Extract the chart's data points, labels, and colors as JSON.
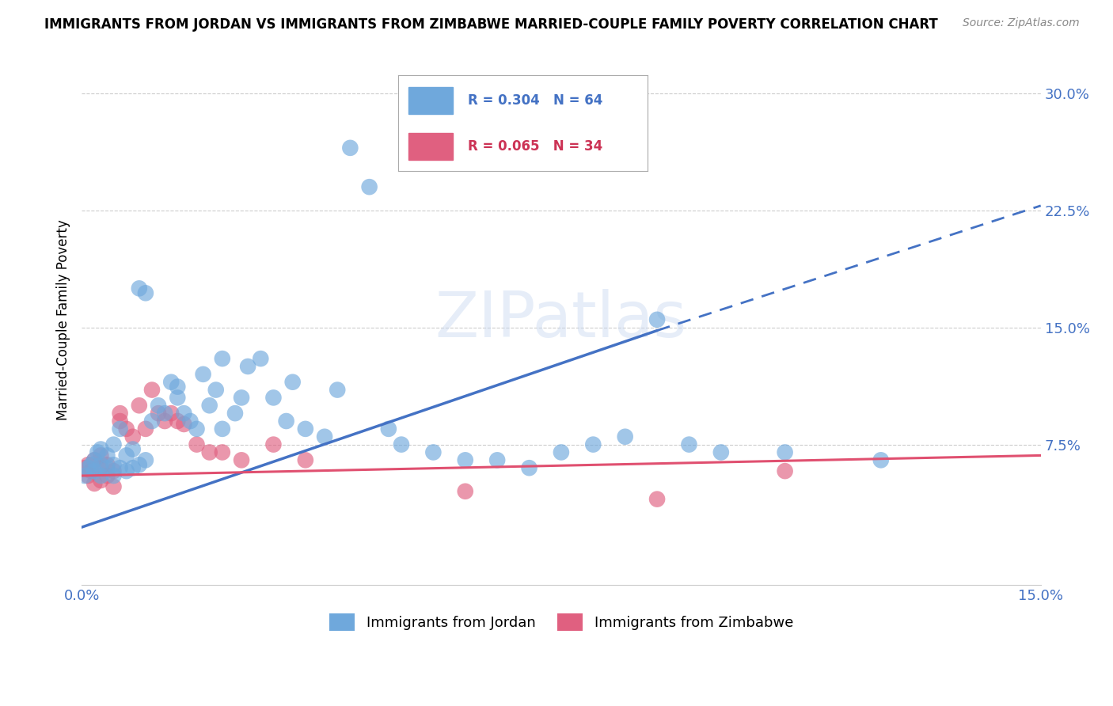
{
  "title": "IMMIGRANTS FROM JORDAN VS IMMIGRANTS FROM ZIMBABWE MARRIED-COUPLE FAMILY POVERTY CORRELATION CHART",
  "source": "Source: ZipAtlas.com",
  "ylabel": "Married-Couple Family Poverty",
  "xlim": [
    0.0,
    0.15
  ],
  "ylim": [
    -0.015,
    0.325
  ],
  "xticks": [
    0.0,
    0.03,
    0.06,
    0.09,
    0.12,
    0.15
  ],
  "xticklabels": [
    "0.0%",
    "",
    "",
    "",
    "",
    "15.0%"
  ],
  "ytick_vals": [
    0.0,
    0.075,
    0.15,
    0.225,
    0.3
  ],
  "yticklabels": [
    "",
    "7.5%",
    "15.0%",
    "22.5%",
    "30.0%"
  ],
  "jordan_color": "#6fa8dc",
  "zimbabwe_color": "#e06080",
  "jordan_R": 0.304,
  "jordan_N": 64,
  "zimbabwe_R": 0.065,
  "zimbabwe_N": 34,
  "watermark": "ZIPatlas",
  "jordan_line_solid": [
    [
      0.0,
      0.09
    ],
    [
      0.022,
      0.148
    ]
  ],
  "jordan_line_dashed": [
    [
      0.09,
      0.15
    ],
    [
      0.148,
      0.228
    ]
  ],
  "zimbabwe_line": [
    [
      0.0,
      0.15
    ],
    [
      0.055,
      0.068
    ]
  ],
  "jordan_x": [
    0.0005,
    0.001,
    0.0015,
    0.002,
    0.002,
    0.0025,
    0.003,
    0.003,
    0.003,
    0.004,
    0.004,
    0.005,
    0.005,
    0.005,
    0.006,
    0.006,
    0.007,
    0.007,
    0.008,
    0.008,
    0.009,
    0.009,
    0.01,
    0.01,
    0.011,
    0.012,
    0.013,
    0.014,
    0.015,
    0.015,
    0.016,
    0.017,
    0.018,
    0.019,
    0.02,
    0.021,
    0.022,
    0.022,
    0.024,
    0.025,
    0.026,
    0.028,
    0.03,
    0.032,
    0.033,
    0.035,
    0.038,
    0.04,
    0.042,
    0.045,
    0.048,
    0.05,
    0.055,
    0.06,
    0.065,
    0.07,
    0.075,
    0.08,
    0.085,
    0.09,
    0.095,
    0.1,
    0.11,
    0.125
  ],
  "jordan_y": [
    0.055,
    0.06,
    0.062,
    0.058,
    0.065,
    0.07,
    0.055,
    0.062,
    0.072,
    0.06,
    0.068,
    0.055,
    0.062,
    0.075,
    0.06,
    0.085,
    0.058,
    0.068,
    0.06,
    0.072,
    0.062,
    0.175,
    0.065,
    0.172,
    0.09,
    0.1,
    0.095,
    0.115,
    0.105,
    0.112,
    0.095,
    0.09,
    0.085,
    0.12,
    0.1,
    0.11,
    0.085,
    0.13,
    0.095,
    0.105,
    0.125,
    0.13,
    0.105,
    0.09,
    0.115,
    0.085,
    0.08,
    0.11,
    0.265,
    0.24,
    0.085,
    0.075,
    0.07,
    0.065,
    0.065,
    0.06,
    0.07,
    0.075,
    0.08,
    0.155,
    0.075,
    0.07,
    0.07,
    0.065
  ],
  "zimbabwe_x": [
    0.0005,
    0.001,
    0.001,
    0.0015,
    0.002,
    0.002,
    0.003,
    0.003,
    0.003,
    0.004,
    0.004,
    0.005,
    0.005,
    0.006,
    0.006,
    0.007,
    0.008,
    0.009,
    0.01,
    0.011,
    0.012,
    0.013,
    0.014,
    0.015,
    0.016,
    0.018,
    0.02,
    0.022,
    0.025,
    0.03,
    0.035,
    0.06,
    0.09,
    0.11
  ],
  "zimbabwe_y": [
    0.06,
    0.055,
    0.062,
    0.058,
    0.05,
    0.065,
    0.052,
    0.06,
    0.068,
    0.055,
    0.062,
    0.048,
    0.058,
    0.09,
    0.095,
    0.085,
    0.08,
    0.1,
    0.085,
    0.11,
    0.095,
    0.09,
    0.095,
    0.09,
    0.088,
    0.075,
    0.07,
    0.07,
    0.065,
    0.075,
    0.065,
    0.045,
    0.04,
    0.058
  ],
  "legend_jordan_text": "R = 0.304   N = 64",
  "legend_zimbabwe_text": "R = 0.065   N = 34",
  "legend_jordan_color": "#4472c4",
  "legend_zimbabwe_color": "#cc3355",
  "axis_label_color": "#4472c4",
  "grid_color": "#cccccc",
  "title_fontsize": 12,
  "source_fontsize": 10,
  "tick_fontsize": 13,
  "legend_fontsize": 12
}
